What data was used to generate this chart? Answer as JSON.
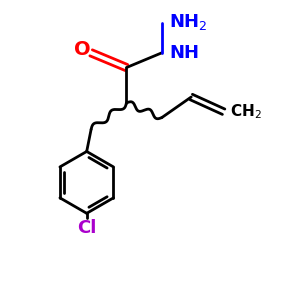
{
  "bg_color": "#ffffff",
  "bond_color": "#000000",
  "O_color": "#ff0000",
  "N_color": "#0000ff",
  "Cl_color": "#aa00cc",
  "line_width": 2.0,
  "figsize": [
    3.0,
    3.0
  ],
  "dpi": 100,
  "xlim": [
    0,
    10
  ],
  "ylim": [
    0,
    10
  ]
}
